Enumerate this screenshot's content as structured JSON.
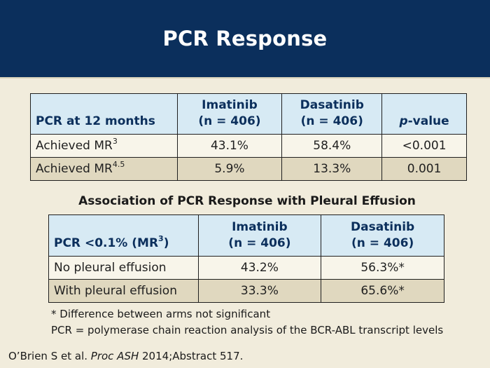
{
  "header": {
    "title": "PCR Response"
  },
  "table1": {
    "row_header": "PCR at 12 months",
    "col1": {
      "line1": "Imatinib",
      "line2": "(n = 406)"
    },
    "col2": {
      "line1": "Dasatinib",
      "line2": "(n = 406)"
    },
    "col3": {
      "italic": "p",
      "rest": "-value"
    },
    "rows": [
      {
        "label": "Achieved MR",
        "sup": "3",
        "imatinib": "43.1%",
        "dasatinib": "58.4%",
        "p": "<0.001"
      },
      {
        "label": "Achieved MR",
        "sup": "4.5",
        "imatinib": "5.9%",
        "dasatinib": "13.3%",
        "p": "0.001"
      }
    ]
  },
  "association_title": "Association of PCR Response with Pleural Effusion",
  "table2": {
    "row_header": "PCR <0.1% (MR",
    "row_header_sup": "3",
    "row_header_end": ")",
    "col1": {
      "line1": "Imatinib",
      "line2": "(n = 406)"
    },
    "col2": {
      "line1": "Dasatinib",
      "line2": "(n = 406)"
    },
    "rows": [
      {
        "label": "No pleural effusion",
        "imatinib": "43.2%",
        "dasatinib": "56.3%*"
      },
      {
        "label": "With pleural effusion",
        "imatinib": "33.3%",
        "dasatinib": "65.6%*"
      }
    ]
  },
  "footnotes": {
    "note1": "* Difference between arms not significant",
    "note2": "PCR = polymerase chain reaction analysis of the BCR-ABL transcript levels"
  },
  "citation": {
    "authors": "O’Brien S et al. ",
    "journal": "Proc ASH",
    "rest": " 2014;Abstract 517."
  }
}
